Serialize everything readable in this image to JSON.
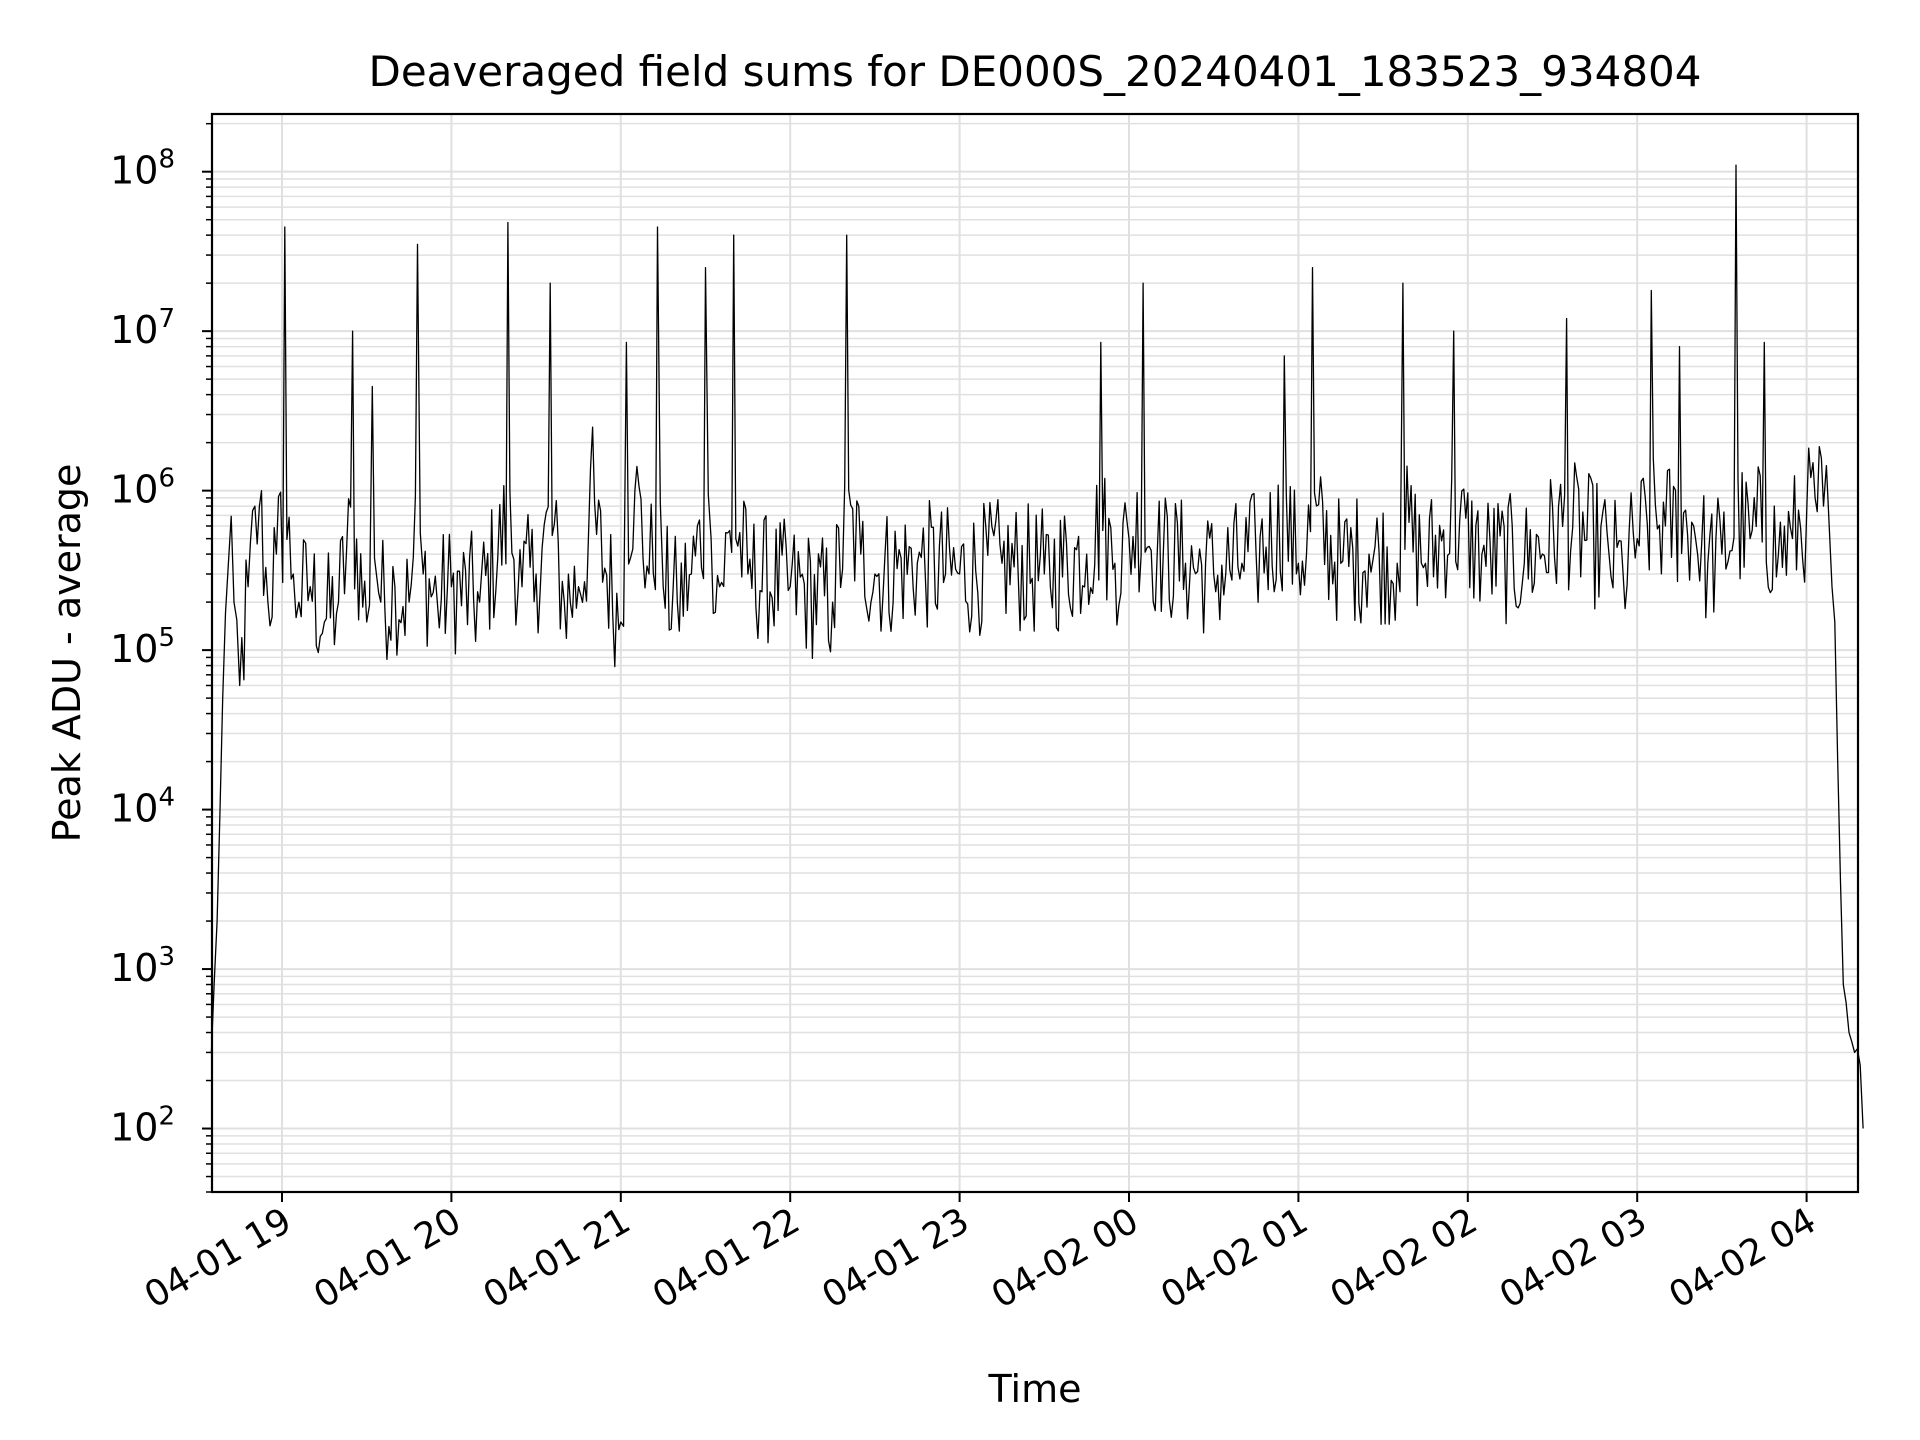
{
  "chart_data": {
    "type": "line",
    "title": "Deaveraged field sums for DE000S_20240401_183523_934804",
    "xlabel": "Time",
    "ylabel": "Peak ADU - average",
    "yscale": "log",
    "ylim": [
      40,
      230000000
    ],
    "xlim": [
      "2024-04-01 18:35",
      "2024-04-02 04:20"
    ],
    "grid": true,
    "line_color": "#000000",
    "grid_color": "#e0e0e0",
    "x_ticks": [
      "04-01 19",
      "04-01 20",
      "04-01 21",
      "04-01 22",
      "04-01 23",
      "04-02 00",
      "04-02 01",
      "04-02 02",
      "04-02 03",
      "04-02 04"
    ],
    "y_ticks": [
      {
        "base": "10",
        "exp": "2",
        "value": 100
      },
      {
        "base": "10",
        "exp": "3",
        "value": 1000
      },
      {
        "base": "10",
        "exp": "4",
        "value": 10000
      },
      {
        "base": "10",
        "exp": "5",
        "value": 100000
      },
      {
        "base": "10",
        "exp": "6",
        "value": 1000000
      },
      {
        "base": "10",
        "exp": "7",
        "value": 10000000
      },
      {
        "base": "10",
        "exp": "8",
        "value": 100000000
      }
    ],
    "series": [
      {
        "values": {
          "x": [
            "2024-04-01 18:35",
            "2024-04-01 18:37",
            "2024-04-01 18:39",
            "2024-04-01 18:41",
            "2024-04-01 18:43",
            "2024-04-01 18:45",
            "2024-04-01 18:48",
            "2024-04-01 18:52",
            "2024-04-01 18:55",
            "2024-04-01 18:58",
            "2024-04-01 19:01",
            "2024-04-01 19:04",
            "2024-04-01 19:06",
            "2024-04-01 19:10",
            "2024-04-01 19:15",
            "2024-04-01 19:20",
            "2024-04-01 19:25",
            "2024-04-01 19:30",
            "2024-04-01 19:32",
            "2024-04-01 19:35",
            "2024-04-01 19:40",
            "2024-04-01 19:45",
            "2024-04-01 19:48",
            "2024-04-01 19:50",
            "2024-04-01 19:55",
            "2024-04-01 20:00",
            "2024-04-01 20:10",
            "2024-04-01 20:20",
            "2024-04-01 20:25",
            "2024-04-01 20:30",
            "2024-04-01 20:35",
            "2024-04-01 20:40",
            "2024-04-01 20:45",
            "2024-04-01 20:50",
            "2024-04-01 21:00",
            "2024-04-01 21:02",
            "2024-04-01 21:05",
            "2024-04-01 21:10",
            "2024-04-01 21:13",
            "2024-04-01 21:15",
            "2024-04-01 21:20",
            "2024-04-01 21:25",
            "2024-04-01 21:30",
            "2024-04-01 21:32",
            "2024-04-01 21:35",
            "2024-04-01 21:40",
            "2024-04-01 21:45",
            "2024-04-01 22:00",
            "2024-04-01 22:15",
            "2024-04-01 22:20",
            "2024-04-01 22:25",
            "2024-04-01 22:30",
            "2024-04-01 22:45",
            "2024-04-01 23:00",
            "2024-04-01 23:15",
            "2024-04-01 23:30",
            "2024-04-01 23:45",
            "2024-04-01 23:50",
            "2024-04-01 23:55",
            "2024-04-02 00:00",
            "2024-04-02 00:05",
            "2024-04-02 00:10",
            "2024-04-02 00:20",
            "2024-04-02 00:30",
            "2024-04-02 00:40",
            "2024-04-02 00:45",
            "2024-04-02 00:55",
            "2024-04-02 01:00",
            "2024-04-02 01:05",
            "2024-04-02 01:15",
            "2024-04-02 01:25",
            "2024-04-02 01:35",
            "2024-04-02 01:37",
            "2024-04-02 01:45",
            "2024-04-02 01:55",
            "2024-04-02 02:05",
            "2024-04-02 02:20",
            "2024-04-02 02:35",
            "2024-04-02 02:50",
            "2024-04-02 02:55",
            "2024-04-02 03:00",
            "2024-04-02 03:05",
            "2024-04-02 03:10",
            "2024-04-02 03:15",
            "2024-04-02 03:20",
            "2024-04-02 03:25",
            "2024-04-02 03:30",
            "2024-04-02 03:35",
            "2024-04-02 03:40",
            "2024-04-02 03:45",
            "2024-04-02 03:50",
            "2024-04-02 03:55",
            "2024-04-02 04:00",
            "2024-04-02 04:03",
            "2024-04-02 04:06",
            "2024-04-02 04:08",
            "2024-04-02 04:09",
            "2024-04-02 04:10",
            "2024-04-02 04:11",
            "2024-04-02 04:12",
            "2024-04-02 04:13",
            "2024-04-02 04:15",
            "2024-04-02 04:17",
            "2024-04-02 04:19",
            "2024-04-02 04:20"
          ],
          "y": [
            300,
            2000,
            50000,
            350000,
            200000,
            60000,
            250000,
            800000,
            200000,
            400000,
            45000000,
            300000,
            200000,
            250000,
            150000,
            200000,
            10000000,
            150000,
            4500000,
            200000,
            250000,
            200000,
            35000000,
            300000,
            200000,
            250000,
            200000,
            48000000,
            250000,
            300000,
            20000000,
            200000,
            250000,
            2500000,
            150000,
            8500000,
            1000000,
            300000,
            45000000,
            250000,
            200000,
            300000,
            25000000,
            500000,
            250000,
            40000000,
            300000,
            250000,
            200000,
            40000000,
            400000,
            300000,
            350000,
            300000,
            350000,
            300000,
            400000,
            8500000,
            350000,
            500000,
            20000000,
            400000,
            350000,
            300000,
            350000,
            400000,
            7000000,
            350000,
            25000000,
            350000,
            400000,
            350000,
            20000000,
            350000,
            10000000,
            400000,
            350000,
            12000000,
            400000,
            300000,
            500000,
            18000000,
            600000,
            8000000,
            600000,
            350000,
            400000,
            110000000,
            500000,
            8500000,
            400000,
            500000,
            700000,
            900000,
            800000,
            600000,
            250000,
            150000,
            20000,
            3500,
            800,
            400,
            300,
            250,
            100
          ]
        }
      }
    ]
  }
}
